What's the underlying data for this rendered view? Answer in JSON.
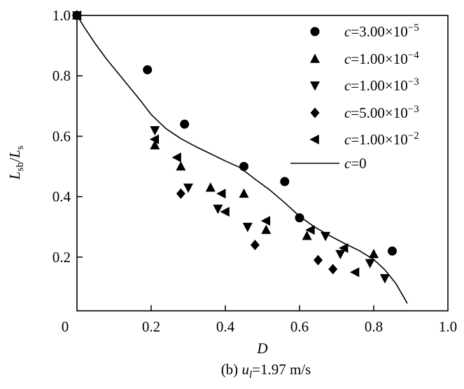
{
  "figure": {
    "xlabel": "D",
    "ylabel": {
      "l1": "L",
      "s1": "sb",
      "slash": "/",
      "l2": "L",
      "s2": "s"
    },
    "caption": {
      "pre": "(b) ",
      "var": "u",
      "sub": "l",
      "rest": "=1.97 m/s"
    }
  },
  "colors": {
    "ink": "#000000",
    "background": "#ffffff"
  },
  "chart_data": {
    "type": "scatter",
    "title": "",
    "xlabel": "D",
    "ylabel": "L_sb / L_s",
    "xlim": [
      0,
      1.0
    ],
    "ylim": [
      0,
      1.0
    ],
    "grid": false,
    "legend_position": "top-right-inside",
    "x_ticks": [
      {
        "v": 0,
        "label": "0"
      },
      {
        "v": 0.2,
        "label": "0.2"
      },
      {
        "v": 0.4,
        "label": "0.4"
      },
      {
        "v": 0.6,
        "label": "0.6"
      },
      {
        "v": 0.8,
        "label": "0.8"
      },
      {
        "v": 1.0,
        "label": "1.0"
      }
    ],
    "y_ticks": [
      {
        "v": 0.2,
        "label": "0.2"
      },
      {
        "v": 0.4,
        "label": "0.4"
      },
      {
        "v": 0.6,
        "label": "0.6"
      },
      {
        "v": 0.8,
        "label": "0.8"
      },
      {
        "v": 1.0,
        "label": "1.0"
      }
    ],
    "series": [
      {
        "name": "c=3.00x10^-5",
        "marker": "circle",
        "legend": {
          "c": "c",
          "base": "=3.00×10",
          "exp": "−5"
        },
        "points": [
          [
            0,
            1.0
          ],
          [
            0.19,
            0.82
          ],
          [
            0.29,
            0.64
          ],
          [
            0.45,
            0.5
          ],
          [
            0.56,
            0.45
          ],
          [
            0.6,
            0.33
          ],
          [
            0.85,
            0.22
          ]
        ]
      },
      {
        "name": "c=1.00x10^-4",
        "marker": "triangle-up",
        "legend": {
          "c": "c",
          "base": "=1.00×10",
          "exp": "−4"
        },
        "points": [
          [
            0,
            1.0
          ],
          [
            0.21,
            0.57
          ],
          [
            0.28,
            0.5
          ],
          [
            0.36,
            0.43
          ],
          [
            0.45,
            0.41
          ],
          [
            0.51,
            0.29
          ],
          [
            0.62,
            0.27
          ],
          [
            0.8,
            0.21
          ]
        ]
      },
      {
        "name": "c=1.00x10^-3",
        "marker": "triangle-down",
        "legend": {
          "c": "c",
          "base": "=1.00×10",
          "exp": "−3"
        },
        "points": [
          [
            0,
            1.0
          ],
          [
            0.21,
            0.62
          ],
          [
            0.3,
            0.43
          ],
          [
            0.38,
            0.36
          ],
          [
            0.46,
            0.3
          ],
          [
            0.67,
            0.27
          ],
          [
            0.71,
            0.21
          ],
          [
            0.79,
            0.18
          ],
          [
            0.83,
            0.13
          ]
        ]
      },
      {
        "name": "c=5.00x10^-3",
        "marker": "diamond",
        "legend": {
          "c": "c",
          "base": "=5.00×10",
          "exp": "−3"
        },
        "points": [
          [
            0,
            1.0
          ],
          [
            0.28,
            0.41
          ],
          [
            0.48,
            0.24
          ],
          [
            0.65,
            0.19
          ],
          [
            0.69,
            0.16
          ]
        ]
      },
      {
        "name": "c=1.00x10^-2",
        "marker": "triangle-left",
        "legend": {
          "c": "c",
          "base": "=1.00×10",
          "exp": "−2"
        },
        "points": [
          [
            0,
            1.0
          ],
          [
            0.21,
            0.59
          ],
          [
            0.27,
            0.53
          ],
          [
            0.39,
            0.41
          ],
          [
            0.4,
            0.35
          ],
          [
            0.51,
            0.32
          ],
          [
            0.63,
            0.29
          ],
          [
            0.72,
            0.23
          ],
          [
            0.75,
            0.15
          ]
        ]
      },
      {
        "name": "c=0",
        "marker": "line",
        "legend": {
          "c": "c",
          "base": "=0",
          "exp": ""
        },
        "curve": [
          [
            0,
            1.0
          ],
          [
            0.02,
            0.96
          ],
          [
            0.05,
            0.905
          ],
          [
            0.08,
            0.855
          ],
          [
            0.11,
            0.81
          ],
          [
            0.14,
            0.765
          ],
          [
            0.17,
            0.72
          ],
          [
            0.2,
            0.672
          ],
          [
            0.24,
            0.625
          ],
          [
            0.28,
            0.592
          ],
          [
            0.32,
            0.566
          ],
          [
            0.36,
            0.542
          ],
          [
            0.4,
            0.518
          ],
          [
            0.44,
            0.496
          ],
          [
            0.48,
            0.458
          ],
          [
            0.52,
            0.422
          ],
          [
            0.56,
            0.38
          ],
          [
            0.6,
            0.335
          ],
          [
            0.64,
            0.3
          ],
          [
            0.68,
            0.272
          ],
          [
            0.72,
            0.246
          ],
          [
            0.76,
            0.222
          ],
          [
            0.8,
            0.192
          ],
          [
            0.83,
            0.158
          ],
          [
            0.86,
            0.112
          ],
          [
            0.89,
            0.048
          ]
        ]
      }
    ]
  }
}
